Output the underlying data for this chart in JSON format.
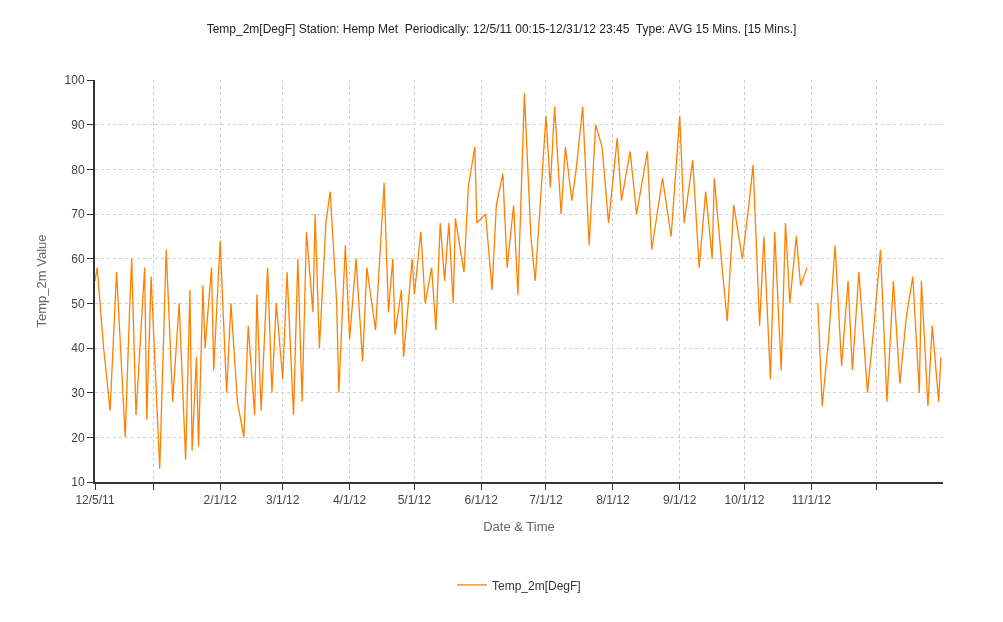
{
  "chart_data": {
    "type": "line",
    "title": "Temp_2m[DegF] Station: Hemp Met  Periodically: 12/5/11 00:15-12/31/12 23:45  Type: AVG 15 Mins. [15 Mins.]",
    "xlabel": "Date & Time",
    "ylabel": "Temp_2m Value",
    "x": [
      "2011-12-05",
      "2011-12-06",
      "2011-12-09",
      "2011-12-12",
      "2011-12-15",
      "2011-12-19",
      "2011-12-21",
      "2011-12-22",
      "2011-12-24",
      "2011-12-28",
      "2011-12-29",
      "2011-12-31",
      "2012-01-04",
      "2012-01-07",
      "2012-01-10",
      "2012-01-13",
      "2012-01-16",
      "2012-01-18",
      "2012-01-19",
      "2012-01-21",
      "2012-01-22",
      "2012-01-24",
      "2012-01-25",
      "2012-01-28",
      "2012-01-29",
      "2012-02-01",
      "2012-02-04",
      "2012-02-06",
      "2012-02-09",
      "2012-02-12",
      "2012-02-14",
      "2012-02-17",
      "2012-02-18",
      "2012-02-20",
      "2012-02-23",
      "2012-02-25",
      "2012-02-27",
      "2012-03-01",
      "2012-03-03",
      "2012-03-06",
      "2012-03-08",
      "2012-03-10",
      "2012-03-12",
      "2012-03-15",
      "2012-03-16",
      "2012-03-18",
      "2012-03-21",
      "2012-03-23",
      "2012-03-26",
      "2012-03-27",
      "2012-03-30",
      "2012-04-01",
      "2012-04-04",
      "2012-04-07",
      "2012-04-09",
      "2012-04-13",
      "2012-04-17",
      "2012-04-19",
      "2012-04-21",
      "2012-04-22",
      "2012-04-25",
      "2012-04-26",
      "2012-04-30",
      "2012-05-01",
      "2012-05-04",
      "2012-05-06",
      "2012-05-09",
      "2012-05-11",
      "2012-05-13",
      "2012-05-15",
      "2012-05-17",
      "2012-05-19",
      "2012-05-20",
      "2012-05-24",
      "2012-05-26",
      "2012-05-29",
      "2012-05-30",
      "2012-06-03",
      "2012-06-06",
      "2012-06-08",
      "2012-06-11",
      "2012-06-13",
      "2012-06-16",
      "2012-06-18",
      "2012-06-21",
      "2012-06-24",
      "2012-06-26",
      "2012-07-01",
      "2012-07-03",
      "2012-07-05",
      "2012-07-08",
      "2012-07-10",
      "2012-07-13",
      "2012-07-15",
      "2012-07-18",
      "2012-07-21",
      "2012-07-24",
      "2012-07-27",
      "2012-07-30",
      "2012-08-03",
      "2012-08-05",
      "2012-08-09",
      "2012-08-12",
      "2012-08-17",
      "2012-08-19",
      "2012-08-24",
      "2012-08-28",
      "2012-09-01",
      "2012-09-03",
      "2012-09-07",
      "2012-09-10",
      "2012-09-13",
      "2012-09-16",
      "2012-09-17",
      "2012-09-21",
      "2012-09-23",
      "2012-09-26",
      "2012-09-30",
      "2012-10-03",
      "2012-10-05",
      "2012-10-08",
      "2012-10-10",
      "2012-10-13",
      "2012-10-15",
      "2012-10-18",
      "2012-10-20",
      "2012-10-22",
      "2012-10-25",
      "2012-10-27",
      "2012-10-30",
      "2012-11-01",
      "2012-11-04",
      "2012-11-06",
      "2012-11-09",
      "2012-11-12",
      "2012-11-15",
      "2012-11-18",
      "2012-11-20",
      "2012-11-23",
      "2012-11-27",
      "2012-11-30",
      "2012-12-03",
      "2012-12-06",
      "2012-12-09",
      "2012-12-12",
      "2012-12-15",
      "2012-12-18",
      "2012-12-21",
      "2012-12-22",
      "2012-12-25",
      "2012-12-27",
      "2012-12-30",
      "2012-12-31"
    ],
    "series": [
      {
        "name": "Temp_2m[DegF]",
        "color": "#ff8000",
        "values": [
          55,
          58,
          40,
          26,
          57,
          20,
          48,
          60,
          25,
          58,
          24,
          56,
          13,
          62,
          28,
          50,
          15,
          53,
          17,
          38,
          18,
          54,
          40,
          58,
          35,
          64,
          30,
          50,
          28,
          20,
          45,
          25,
          52,
          26,
          58,
          30,
          50,
          33,
          57,
          25,
          60,
          28,
          66,
          48,
          70,
          40,
          68,
          75,
          50,
          30,
          63,
          42,
          60,
          37,
          58,
          44,
          77,
          48,
          60,
          43,
          53,
          38,
          60,
          52,
          66,
          50,
          58,
          44,
          68,
          55,
          68,
          50,
          69,
          57,
          76,
          85,
          68,
          70,
          53,
          72,
          79,
          58,
          72,
          52,
          97,
          65,
          55,
          92,
          76,
          94,
          70,
          85,
          73,
          80,
          94,
          63,
          90,
          85,
          68,
          87,
          73,
          84,
          70,
          84,
          62,
          78,
          65,
          92,
          68,
          82,
          58,
          75,
          60,
          78,
          56,
          46,
          72,
          60,
          72,
          81,
          45,
          65,
          33,
          66,
          35,
          68,
          50,
          65,
          54,
          58,
          null,
          50,
          27,
          42,
          63,
          36,
          55,
          35,
          57,
          30,
          45,
          62,
          28,
          55,
          32,
          47,
          56,
          30,
          55,
          27,
          45,
          28,
          38
        ]
      }
    ],
    "xlim": [
      "2011-12-05",
      "2012-12-31T23:45"
    ],
    "xticks": [
      {
        "value": "2011-12-05",
        "label": "12/5/11"
      },
      {
        "value": "2012-01-01",
        "label": null
      },
      {
        "value": "2012-02-01",
        "label": "2/1/12"
      },
      {
        "value": "2012-03-01",
        "label": "3/1/12"
      },
      {
        "value": "2012-04-01",
        "label": "4/1/12"
      },
      {
        "value": "2012-05-01",
        "label": "5/1/12"
      },
      {
        "value": "2012-06-01",
        "label": "6/1/12"
      },
      {
        "value": "2012-07-01",
        "label": "7/1/12"
      },
      {
        "value": "2012-08-01",
        "label": "8/1/12"
      },
      {
        "value": "2012-09-01",
        "label": "9/1/12"
      },
      {
        "value": "2012-10-01",
        "label": "10/1/12"
      },
      {
        "value": "2012-11-01",
        "label": "11/1/12"
      },
      {
        "value": "2012-12-01",
        "label": null
      }
    ],
    "ylim": [
      10,
      100
    ],
    "yticks": [
      10,
      20,
      30,
      40,
      50,
      60,
      70,
      80,
      90,
      100
    ],
    "grid": true,
    "legend": "bottom",
    "marker": "none",
    "line_style": "solid"
  }
}
